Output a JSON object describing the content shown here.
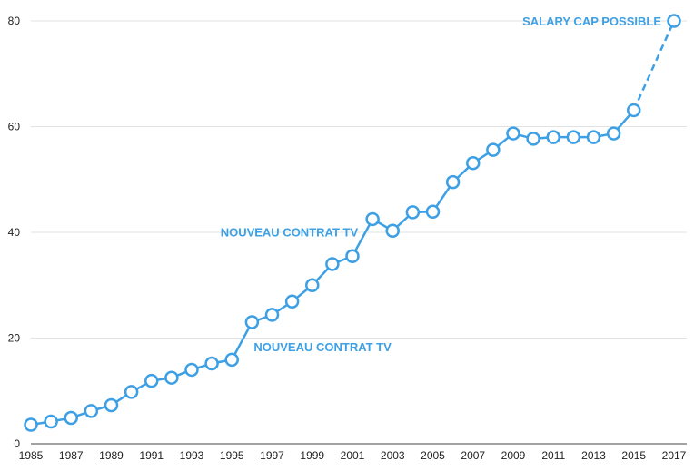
{
  "chart_data": {
    "type": "line",
    "title": "",
    "xlabel": "",
    "ylabel": "",
    "xlim": [
      1985,
      2017
    ],
    "ylim": [
      0,
      80
    ],
    "grid": true,
    "color": "#3ea0e4",
    "x_ticks": [
      "1985",
      "1987",
      "1989",
      "1991",
      "1993",
      "1995",
      "1997",
      "1999",
      "2001",
      "2003",
      "2005",
      "2007",
      "2009",
      "2011",
      "2013",
      "2015",
      "2017"
    ],
    "y_ticks": [
      "0",
      "20",
      "40",
      "60",
      "80"
    ],
    "x": [
      1985,
      1986,
      1987,
      1988,
      1989,
      1990,
      1991,
      1992,
      1993,
      1994,
      1995,
      1996,
      1997,
      1998,
      1999,
      2000,
      2001,
      2002,
      2003,
      2004,
      2005,
      2006,
      2007,
      2008,
      2009,
      2010,
      2011,
      2012,
      2013,
      2014,
      2015,
      2017
    ],
    "y": [
      3.6,
      4.2,
      4.9,
      6.2,
      7.3,
      9.8,
      11.9,
      12.5,
      14.0,
      15.2,
      15.9,
      23.0,
      24.4,
      26.9,
      30.0,
      34.0,
      35.5,
      42.5,
      40.3,
      43.8,
      43.9,
      49.5,
      53.1,
      55.6,
      58.7,
      57.7,
      58.0,
      58.0,
      58.0,
      58.7,
      63.1,
      80.0
    ],
    "dashed_from_x": 2015,
    "annotations": [
      {
        "text": "SALARY CAP POSSIBLE",
        "x": 2017,
        "y": 80
      },
      {
        "text": "NOUVEAU CONTRAT TV",
        "x": 2002,
        "y": 42.5
      },
      {
        "text": "NOUVEAU CONTRAT TV",
        "x": 1996,
        "y": 23.0
      }
    ]
  }
}
